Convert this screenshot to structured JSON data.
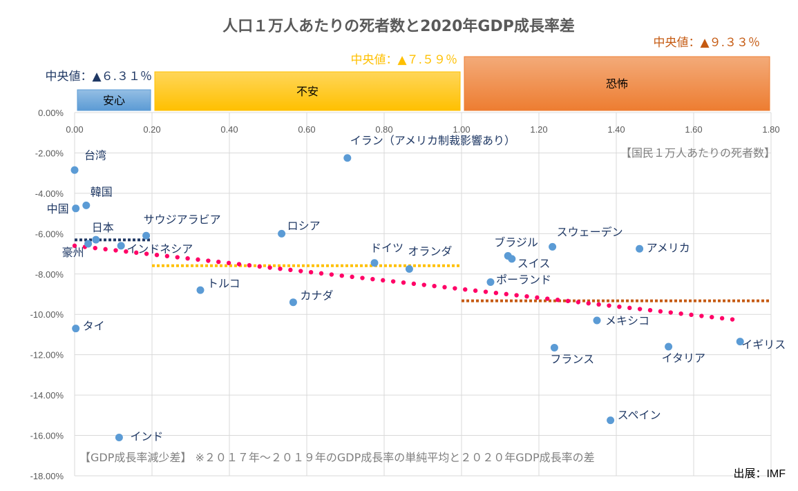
{
  "title": "人口１万人あたりの死者数と2020年GDP成長率差",
  "x_axis_note": "【国民１万人あたりの死者数】",
  "y_axis_note": "【GDP成長率減少差】 ※２０１７年～２０１９年のGDP成長率の単純平均と２０２０年GDP成長率の差",
  "source": "出展：IMF",
  "colors": {
    "point": "#5B9BD5",
    "trend": "#FF0066",
    "grid": "#D9D9D9",
    "anshin_band": "#5B9BD5",
    "fuan_band": "#FFC000",
    "kyofu_band": "#ED7D31",
    "anshin_median": "#1F3864",
    "fuan_median": "#FFC000",
    "kyofu_median": "#C55A11"
  },
  "bands": [
    {
      "label": "安心",
      "median_label": "中央値：▲６.３１％",
      "x_range": [
        0.0,
        0.2
      ],
      "median": -6.31
    },
    {
      "label": "不安",
      "median_label": "中央値：▲７.５９％",
      "x_range": [
        0.2,
        1.0
      ],
      "median": -7.59
    },
    {
      "label": "恐怖",
      "median_label": "中央値：▲９.３３％",
      "x_range": [
        1.0,
        1.8
      ],
      "median": -9.33
    }
  ],
  "chart_data": {
    "type": "scatter",
    "xlim": [
      0,
      1.8
    ],
    "ylim": [
      -18,
      0
    ],
    "x_ticks": [
      "0.00",
      "0.20",
      "0.40",
      "0.60",
      "0.80",
      "1.00",
      "1.20",
      "1.40",
      "1.60",
      "1.80"
    ],
    "y_ticks": [
      "0.00%",
      "-2.00%",
      "-4.00%",
      "-6.00%",
      "-8.00%",
      "-10.00%",
      "-12.00%",
      "-14.00%",
      "-16.00%",
      "-18.00%"
    ],
    "grid": true,
    "trendline": {
      "type": "linear",
      "x_range": [
        0,
        1.7
      ],
      "y_start": -6.6,
      "y_end": -10.25
    },
    "points": [
      {
        "label": "台湾",
        "x": 0.0,
        "y": -2.85
      },
      {
        "label": "中国",
        "x": 0.003,
        "y": -4.75
      },
      {
        "label": "韓国",
        "x": 0.03,
        "y": -4.6
      },
      {
        "label": "豪州",
        "x": 0.035,
        "y": -6.5
      },
      {
        "label": "日本",
        "x": 0.055,
        "y": -6.3
      },
      {
        "label": "インドネシア",
        "x": 0.12,
        "y": -6.6
      },
      {
        "label": "サウジアラビア",
        "x": 0.185,
        "y": -6.1
      },
      {
        "label": "タイ",
        "x": 0.003,
        "y": -10.7
      },
      {
        "label": "インド",
        "x": 0.115,
        "y": -16.1
      },
      {
        "label": "トルコ",
        "x": 0.325,
        "y": -8.8
      },
      {
        "label": "ロシア",
        "x": 0.535,
        "y": -6.0
      },
      {
        "label": "カナダ",
        "x": 0.565,
        "y": -9.4
      },
      {
        "label": "イラン（アメリカ制裁影響あり）",
        "x": 0.705,
        "y": -2.25
      },
      {
        "label": "ドイツ",
        "x": 0.775,
        "y": -7.45
      },
      {
        "label": "オランダ",
        "x": 0.865,
        "y": -7.75
      },
      {
        "label": "ポーランド",
        "x": 1.075,
        "y": -8.4
      },
      {
        "label": "ブラジル",
        "x": 1.12,
        "y": -7.1
      },
      {
        "label": "スイス",
        "x": 1.13,
        "y": -7.25
      },
      {
        "label": "スウェーデン",
        "x": 1.235,
        "y": -6.65
      },
      {
        "label": "フランス",
        "x": 1.24,
        "y": -11.65
      },
      {
        "label": "メキシコ",
        "x": 1.35,
        "y": -10.3
      },
      {
        "label": "スペイン",
        "x": 1.385,
        "y": -15.25
      },
      {
        "label": "アメリカ",
        "x": 1.46,
        "y": -6.75
      },
      {
        "label": "イタリア",
        "x": 1.535,
        "y": -11.6
      },
      {
        "label": "イギリス",
        "x": 1.72,
        "y": -11.35
      }
    ]
  }
}
